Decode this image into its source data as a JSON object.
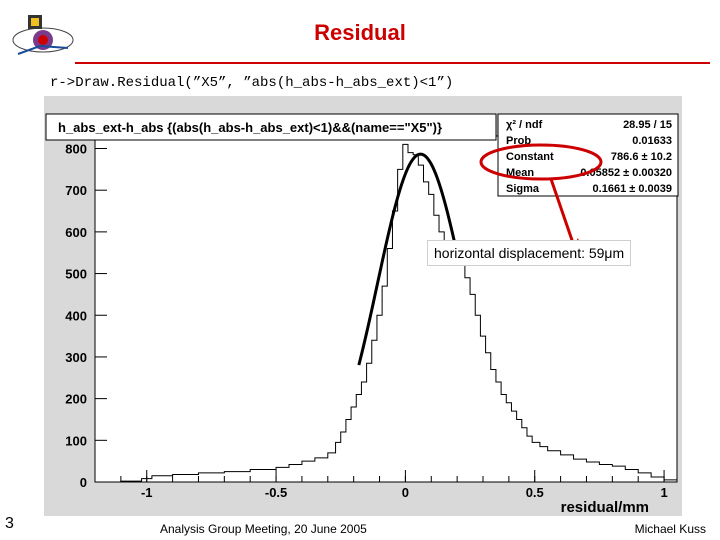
{
  "slide": {
    "title": "Residual",
    "command": "r->Draw.Residual(”X5”, ”abs(h_abs-h_abs_ext)<1”)",
    "annotation": "horizontal displacement: 59μm",
    "footer": {
      "page_number": "3",
      "meeting": "Analysis Group Meeting, 20 June 2005",
      "author": "Michael Kuss"
    },
    "colors": {
      "title": "#cc0000",
      "plot_background": "#d9d9d9",
      "highlight": "#cc0000"
    }
  },
  "chart_data": {
    "type": "histogram",
    "title": "h_abs_ext-h_abs {(abs(h_abs-h_abs_ext)<1)&&(name==\"X5\")}",
    "xlabel": "residual/mm",
    "ylabel": "",
    "xlim": [
      -1.2,
      1.05
    ],
    "ylim": [
      0,
      830
    ],
    "x_ticks": [
      {
        "value": -1,
        "label": "-1"
      },
      {
        "value": -0.5,
        "label": "-0.5"
      },
      {
        "value": 0,
        "label": "0"
      },
      {
        "value": 0.5,
        "label": "0.5"
      },
      {
        "value": 1,
        "label": "1"
      }
    ],
    "y_ticks": [
      {
        "value": 0,
        "label": "0"
      },
      {
        "value": 100,
        "label": "100"
      },
      {
        "value": 200,
        "label": "200"
      },
      {
        "value": 300,
        "label": "300"
      },
      {
        "value": 400,
        "label": "400"
      },
      {
        "value": 500,
        "label": "500"
      },
      {
        "value": 600,
        "label": "600"
      },
      {
        "value": 700,
        "label": "700"
      },
      {
        "value": 800,
        "label": "800"
      }
    ],
    "bins": [
      {
        "x": -1.2,
        "y": 0
      },
      {
        "x": -1.1,
        "y": 2
      },
      {
        "x": -1.02,
        "y": 8
      },
      {
        "x": -0.98,
        "y": 15
      },
      {
        "x": -0.9,
        "y": 18
      },
      {
        "x": -0.8,
        "y": 22
      },
      {
        "x": -0.7,
        "y": 25
      },
      {
        "x": -0.6,
        "y": 30
      },
      {
        "x": -0.5,
        "y": 35
      },
      {
        "x": -0.45,
        "y": 42
      },
      {
        "x": -0.4,
        "y": 50
      },
      {
        "x": -0.35,
        "y": 58
      },
      {
        "x": -0.3,
        "y": 70
      },
      {
        "x": -0.27,
        "y": 95
      },
      {
        "x": -0.25,
        "y": 120
      },
      {
        "x": -0.23,
        "y": 150
      },
      {
        "x": -0.21,
        "y": 180
      },
      {
        "x": -0.19,
        "y": 210
      },
      {
        "x": -0.17,
        "y": 240
      },
      {
        "x": -0.15,
        "y": 285
      },
      {
        "x": -0.13,
        "y": 340
      },
      {
        "x": -0.11,
        "y": 400
      },
      {
        "x": -0.09,
        "y": 470
      },
      {
        "x": -0.07,
        "y": 560
      },
      {
        "x": -0.05,
        "y": 650
      },
      {
        "x": -0.03,
        "y": 750
      },
      {
        "x": -0.01,
        "y": 810
      },
      {
        "x": 0.01,
        "y": 790
      },
      {
        "x": 0.03,
        "y": 785
      },
      {
        "x": 0.05,
        "y": 760
      },
      {
        "x": 0.07,
        "y": 720
      },
      {
        "x": 0.09,
        "y": 690
      },
      {
        "x": 0.11,
        "y": 640
      },
      {
        "x": 0.13,
        "y": 600
      },
      {
        "x": 0.15,
        "y": 570
      },
      {
        "x": 0.17,
        "y": 560
      },
      {
        "x": 0.19,
        "y": 540
      },
      {
        "x": 0.21,
        "y": 520
      },
      {
        "x": 0.23,
        "y": 490
      },
      {
        "x": 0.25,
        "y": 450
      },
      {
        "x": 0.27,
        "y": 400
      },
      {
        "x": 0.29,
        "y": 350
      },
      {
        "x": 0.31,
        "y": 310
      },
      {
        "x": 0.33,
        "y": 270
      },
      {
        "x": 0.35,
        "y": 240
      },
      {
        "x": 0.37,
        "y": 210
      },
      {
        "x": 0.39,
        "y": 190
      },
      {
        "x": 0.41,
        "y": 170
      },
      {
        "x": 0.43,
        "y": 150
      },
      {
        "x": 0.45,
        "y": 130
      },
      {
        "x": 0.47,
        "y": 110
      },
      {
        "x": 0.49,
        "y": 95
      },
      {
        "x": 0.52,
        "y": 85
      },
      {
        "x": 0.55,
        "y": 75
      },
      {
        "x": 0.6,
        "y": 65
      },
      {
        "x": 0.65,
        "y": 55
      },
      {
        "x": 0.7,
        "y": 48
      },
      {
        "x": 0.75,
        "y": 42
      },
      {
        "x": 0.8,
        "y": 38
      },
      {
        "x": 0.85,
        "y": 30
      },
      {
        "x": 0.9,
        "y": 22
      },
      {
        "x": 0.95,
        "y": 12
      },
      {
        "x": 1.0,
        "y": 5
      },
      {
        "x": 1.05,
        "y": 0
      }
    ],
    "fit": {
      "function": "gaus",
      "constant": 786.6,
      "mean": 0.05852,
      "sigma": 0.1661,
      "range": [
        -0.18,
        0.2
      ]
    },
    "stats_box": [
      {
        "label": "χ² / ndf",
        "value": "28.95 / 15"
      },
      {
        "label": "Prob",
        "value": "0.01633"
      },
      {
        "label": "Constant",
        "value": "786.6 ± 10.2"
      },
      {
        "label": "Mean",
        "value": "0.05852 ± 0.00320"
      },
      {
        "label": "Sigma",
        "value": "0.1661 ± 0.0039"
      }
    ],
    "grid": false,
    "legend": "top-right"
  }
}
